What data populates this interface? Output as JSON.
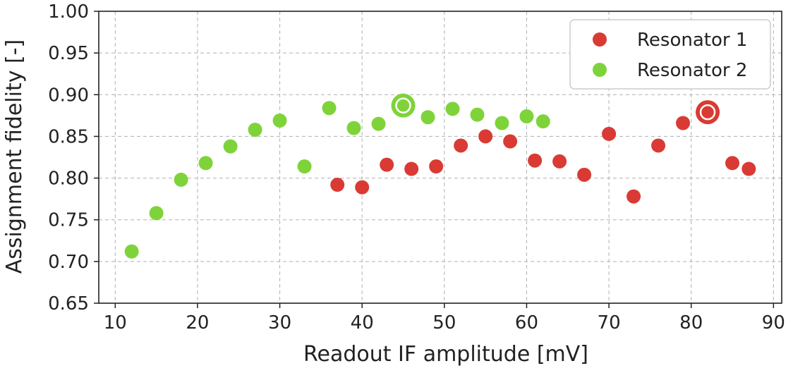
{
  "chart_data": {
    "type": "scatter",
    "xlabel": "Readout IF amplitude [mV]",
    "ylabel": "Assignment fidelity [-]",
    "xlim": [
      8,
      91
    ],
    "ylim": [
      0.65,
      1.0
    ],
    "xticks": [
      "10",
      "20",
      "30",
      "40",
      "50",
      "60",
      "70",
      "80",
      "90"
    ],
    "xtick_values": [
      10,
      20,
      30,
      40,
      50,
      60,
      70,
      80,
      90
    ],
    "yticks": [
      "0.65",
      "0.70",
      "0.75",
      "0.80",
      "0.85",
      "0.90",
      "0.95",
      "1.00"
    ],
    "ytick_values": [
      0.65,
      0.7,
      0.75,
      0.8,
      0.85,
      0.9,
      0.95,
      1.0
    ],
    "grid": true,
    "legend_position": "top-right",
    "series": [
      {
        "name": "Resonator 1",
        "color": "#d93b34",
        "points": [
          {
            "x": 37,
            "y": 0.792
          },
          {
            "x": 40,
            "y": 0.789
          },
          {
            "x": 43,
            "y": 0.816
          },
          {
            "x": 46,
            "y": 0.811
          },
          {
            "x": 49,
            "y": 0.814
          },
          {
            "x": 52,
            "y": 0.839
          },
          {
            "x": 55,
            "y": 0.85
          },
          {
            "x": 58,
            "y": 0.844
          },
          {
            "x": 61,
            "y": 0.821
          },
          {
            "x": 64,
            "y": 0.82
          },
          {
            "x": 67,
            "y": 0.804
          },
          {
            "x": 70,
            "y": 0.853
          },
          {
            "x": 73,
            "y": 0.778
          },
          {
            "x": 76,
            "y": 0.839
          },
          {
            "x": 79,
            "y": 0.866
          },
          {
            "x": 82,
            "y": 0.879
          },
          {
            "x": 85,
            "y": 0.818
          },
          {
            "x": 87,
            "y": 0.811
          }
        ],
        "highlight": {
          "x": 82,
          "y": 0.879
        }
      },
      {
        "name": "Resonator 2",
        "color": "#7fd33a",
        "points": [
          {
            "x": 12,
            "y": 0.712
          },
          {
            "x": 15,
            "y": 0.758
          },
          {
            "x": 18,
            "y": 0.798
          },
          {
            "x": 21,
            "y": 0.818
          },
          {
            "x": 24,
            "y": 0.838
          },
          {
            "x": 27,
            "y": 0.858
          },
          {
            "x": 30,
            "y": 0.869
          },
          {
            "x": 33,
            "y": 0.814
          },
          {
            "x": 36,
            "y": 0.884
          },
          {
            "x": 39,
            "y": 0.86
          },
          {
            "x": 42,
            "y": 0.865
          },
          {
            "x": 45,
            "y": 0.887
          },
          {
            "x": 48,
            "y": 0.873
          },
          {
            "x": 51,
            "y": 0.883
          },
          {
            "x": 54,
            "y": 0.876
          },
          {
            "x": 57,
            "y": 0.866
          },
          {
            "x": 60,
            "y": 0.874
          },
          {
            "x": 62,
            "y": 0.868
          }
        ],
        "highlight": {
          "x": 45,
          "y": 0.887
        }
      }
    ]
  }
}
